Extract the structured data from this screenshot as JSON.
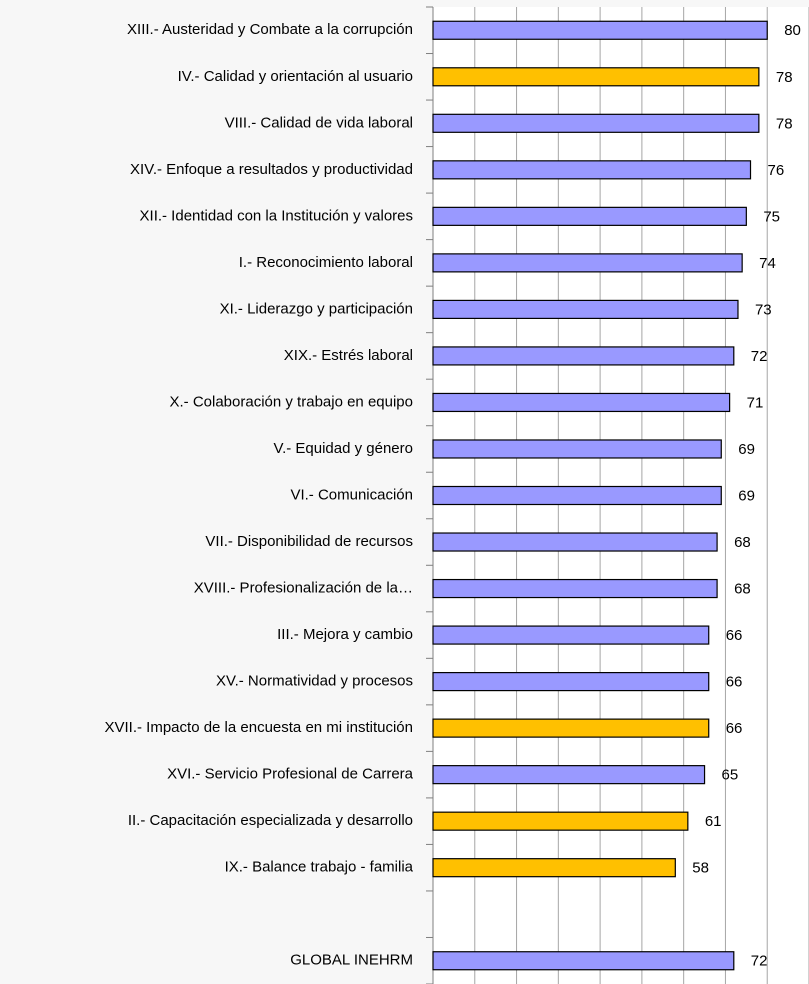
{
  "chart_data": {
    "type": "barh",
    "categories": [
      "XIII.- Austeridad y Combate a la corrupción",
      "IV.- Calidad y orientación al usuario",
      "VIII.- Calidad de vida laboral",
      "XIV.- Enfoque a resultados y productividad",
      "XII.- Identidad con la Institución y valores",
      "I.- Reconocimiento laboral",
      "XI.- Liderazgo y participación",
      "XIX.- Estrés laboral",
      "X.- Colaboración y trabajo en equipo",
      "V.- Equidad y género",
      "VI.- Comunicación",
      "VII.- Disponibilidad de recursos",
      "XVIII.- Profesionalización de la…",
      "III.- Mejora y cambio",
      "XV.- Normatividad y procesos",
      "XVII.- Impacto de la encuesta en mi institución",
      "XVI.- Servicio Profesional de Carrera",
      "II.- Capacitación especializada y desarrollo",
      "IX.- Balance trabajo - familia",
      null,
      "GLOBAL INEHRM"
    ],
    "values": [
      80,
      78,
      78,
      76,
      75,
      74,
      73,
      72,
      71,
      69,
      69,
      68,
      68,
      66,
      66,
      66,
      65,
      61,
      58,
      null,
      72
    ],
    "colors": [
      "#9999ff",
      "#ffc000",
      "#9999ff",
      "#9999ff",
      "#9999ff",
      "#9999ff",
      "#9999ff",
      "#9999ff",
      "#9999ff",
      "#9999ff",
      "#9999ff",
      "#9999ff",
      "#9999ff",
      "#9999ff",
      "#9999ff",
      "#ffc000",
      "#9999ff",
      "#ffc000",
      "#ffc000",
      null,
      "#9999ff"
    ],
    "xlim": [
      0,
      90
    ],
    "xticks": [
      0,
      10,
      20,
      30,
      40,
      50,
      60,
      70,
      80,
      90
    ],
    "grid": true
  }
}
